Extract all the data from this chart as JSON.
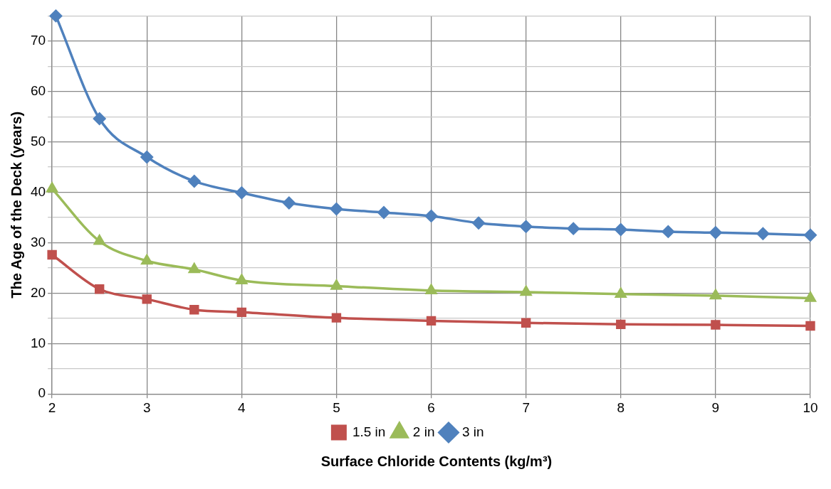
{
  "chart_data": {
    "type": "line",
    "xlabel": "Surface Chloride Contents (kg/m³)",
    "ylabel": "The Age of the Deck (years)",
    "xlim": [
      2,
      10
    ],
    "xticks": [
      2,
      3,
      4,
      5,
      6,
      7,
      8,
      9,
      10
    ],
    "ylim": [
      0,
      75
    ],
    "yticks": [
      0,
      {
        "value": 5,
        "label": null
      },
      10,
      {
        "value": 15,
        "label": null
      },
      20,
      {
        "value": 25,
        "label": null
      },
      30,
      {
        "value": 35,
        "label": null
      },
      40,
      {
        "value": 45,
        "label": null
      },
      50,
      {
        "value": 55,
        "label": null
      },
      60,
      {
        "value": 65,
        "label": null
      },
      70,
      {
        "value": 75,
        "label": null
      }
    ],
    "grid": true,
    "legend": "bottom",
    "line_style": "solid",
    "series": [
      {
        "name": "1.5 in",
        "color": "#c0504d",
        "marker": "square",
        "x": [
          2,
          2.5,
          3,
          3.5,
          4,
          5,
          6,
          7,
          8,
          9,
          10
        ],
        "values": [
          27.6,
          20.8,
          18.8,
          16.7,
          16.2,
          15.1,
          14.5,
          14.1,
          13.8,
          13.7,
          13.5
        ]
      },
      {
        "name": "2 in",
        "color": "#9bbb59",
        "marker": "triangle",
        "x": [
          2,
          2.5,
          3,
          3.5,
          4,
          5,
          6,
          7,
          8,
          9,
          10
        ],
        "values": [
          40.7,
          30.3,
          26.4,
          24.7,
          22.5,
          21.4,
          20.5,
          20.2,
          19.8,
          19.5,
          19.0
        ]
      },
      {
        "name": "3 in",
        "color": "#4f81bd",
        "marker": "diamond",
        "x": [
          2.04,
          2.5,
          3,
          3.5,
          4,
          4.5,
          5,
          5.5,
          6,
          6.5,
          7,
          7.5,
          8,
          8.5,
          9,
          9.5,
          10
        ],
        "values": [
          75,
          54.6,
          47.0,
          42.2,
          39.9,
          37.9,
          36.7,
          36.0,
          35.3,
          33.9,
          33.2,
          32.8,
          32.6,
          32.2,
          32.0,
          31.8,
          31.5
        ]
      }
    ]
  }
}
